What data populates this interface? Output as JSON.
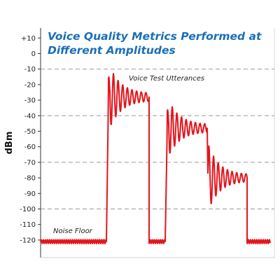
{
  "chart_data": {
    "type": "line",
    "title_line1": "Voice Quality Metrics Performed at",
    "title_line2": "Different Amplitudes",
    "ylabel": "dBm",
    "xlabel": "",
    "ylim": [
      -125,
      15
    ],
    "y_ticks": [
      "+10",
      "0",
      "-10",
      "-20",
      "-30",
      "-40",
      "-50",
      "-60",
      "-70",
      "-80",
      "-90",
      "-100",
      "-110",
      "-120"
    ],
    "y_tick_values": [
      10,
      0,
      -10,
      -20,
      -30,
      -40,
      -50,
      -60,
      -70,
      -80,
      -90,
      -100,
      -110,
      -120
    ],
    "dashed_gridlines_at": [
      -10,
      -40,
      -70,
      -100
    ],
    "series_color": "#e4141b",
    "title_color": "#1a6fb8",
    "annotations": {
      "utterances": "Voice Test Utterances",
      "noise_floor": "Noise Floor"
    },
    "segments": [
      {
        "kind": "noise",
        "x_start": 0,
        "x_end": 94,
        "level": -121
      },
      {
        "kind": "burst",
        "x_start": 94,
        "x_end": 155,
        "peak": -8,
        "settle": -28
      },
      {
        "kind": "noise",
        "x_start": 155,
        "x_end": 178,
        "level": -121
      },
      {
        "kind": "burst",
        "x_start": 178,
        "x_end": 238,
        "peak": -30,
        "settle": -48
      },
      {
        "kind": "step",
        "x_start": 238,
        "x_end": 295,
        "peak": -61,
        "settle": -80
      },
      {
        "kind": "noise",
        "x_start": 295,
        "x_end": 328,
        "level": -121
      }
    ]
  }
}
